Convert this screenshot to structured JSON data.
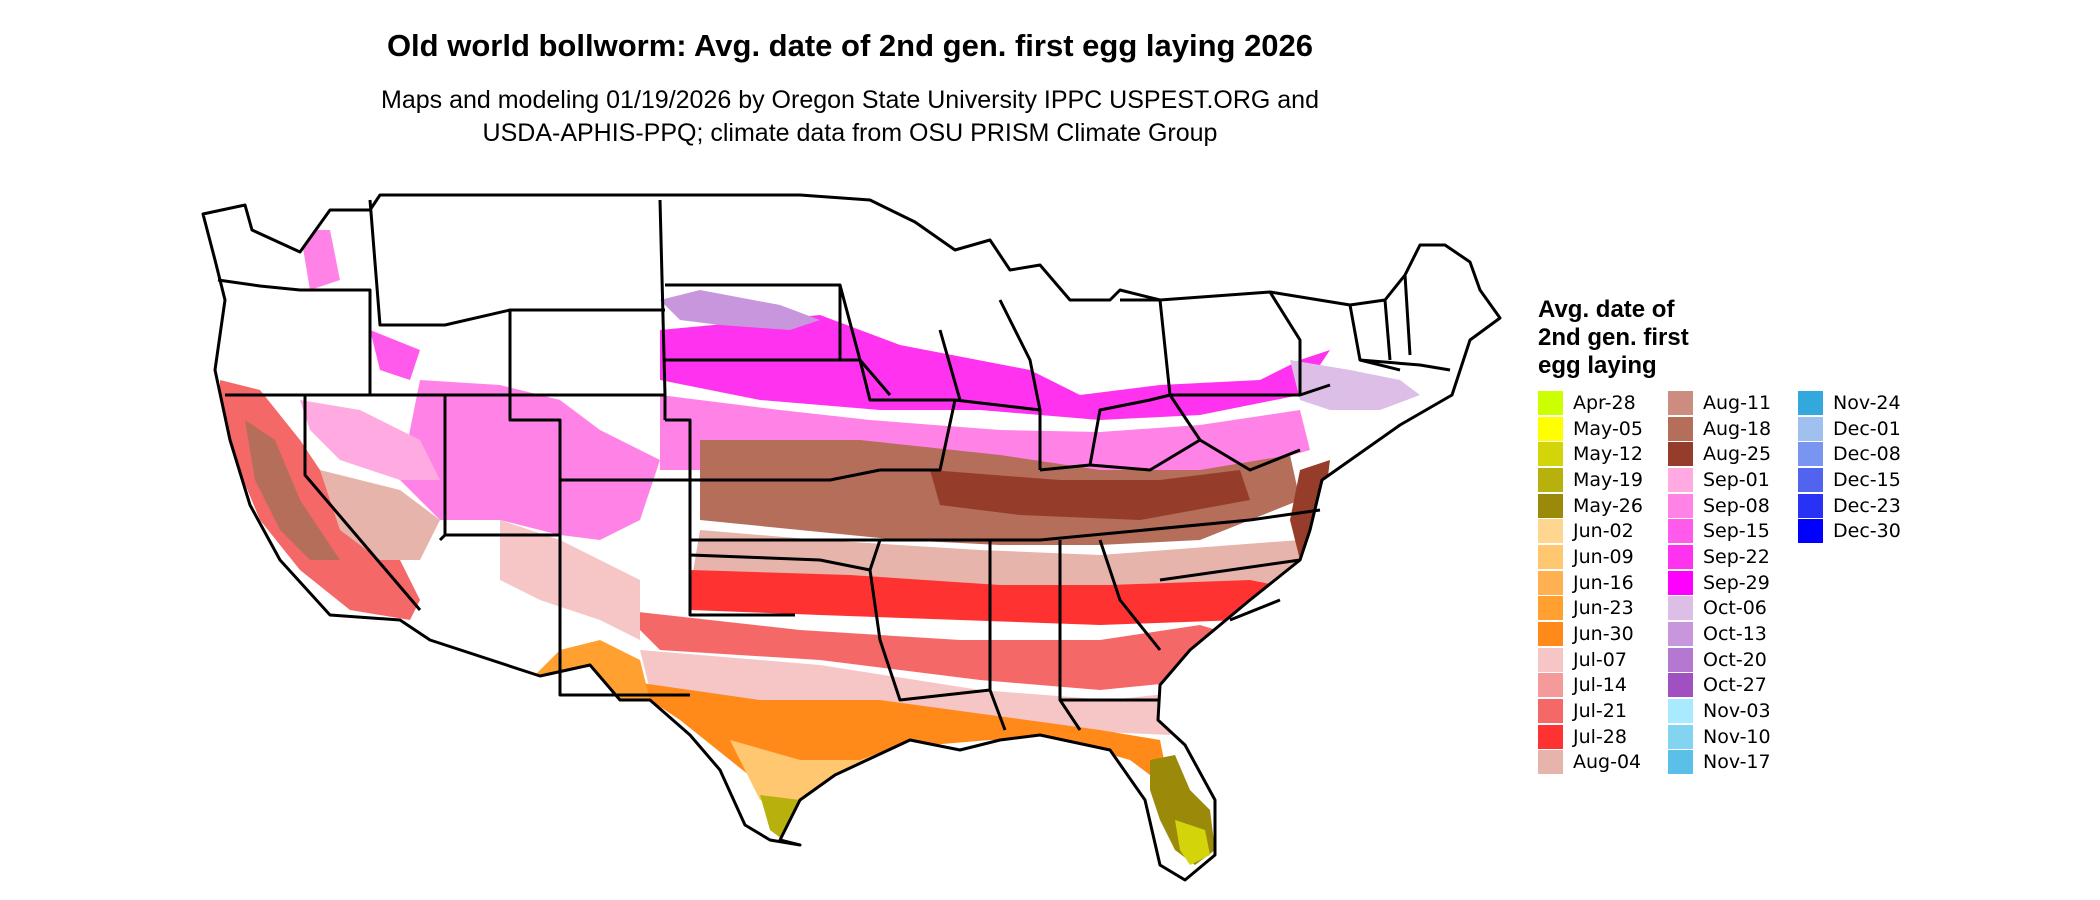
{
  "title": "Old world bollworm: Avg. date of 2nd gen. first egg laying 2026",
  "subtitle": {
    "line1": "Maps and modeling 01/19/2026 by Oregon State University IPPC USPEST.ORG and",
    "line2": "USDA-APHIS-PPQ; climate data from OSU PRISM Climate Group"
  },
  "legend": {
    "title_lines": [
      "Avg. date of",
      "2nd gen. first",
      "egg laying"
    ],
    "columns": [
      [
        {
          "label": "Apr-28",
          "color": "#ccff00"
        },
        {
          "label": "May-05",
          "color": "#ffff00"
        },
        {
          "label": "May-12",
          "color": "#d4d40a"
        },
        {
          "label": "May-19",
          "color": "#b8b00c"
        },
        {
          "label": "May-26",
          "color": "#9b8a0a"
        },
        {
          "label": "Jun-02",
          "color": "#fed690"
        },
        {
          "label": "Jun-09",
          "color": "#ffc870"
        },
        {
          "label": "Jun-16",
          "color": "#ffb050"
        },
        {
          "label": "Jun-23",
          "color": "#ffa030"
        },
        {
          "label": "Jun-30",
          "color": "#ff8a1a"
        },
        {
          "label": "Jul-07",
          "color": "#f6c6c6"
        },
        {
          "label": "Jul-14",
          "color": "#f59a9a"
        },
        {
          "label": "Jul-21",
          "color": "#f56868"
        },
        {
          "label": "Jul-28",
          "color": "#ff3232"
        },
        {
          "label": "Aug-04",
          "color": "#e6b4aa"
        }
      ],
      [
        {
          "label": "Aug-11",
          "color": "#cc8c80"
        },
        {
          "label": "Aug-18",
          "color": "#b46e5a"
        },
        {
          "label": "Aug-25",
          "color": "#963c2a"
        },
        {
          "label": "Sep-01",
          "color": "#ffaae0"
        },
        {
          "label": "Sep-08",
          "color": "#ff82e6"
        },
        {
          "label": "Sep-15",
          "color": "#ff5aeb"
        },
        {
          "label": "Sep-22",
          "color": "#ff32f0"
        },
        {
          "label": "Sep-29",
          "color": "#ff00ff"
        },
        {
          "label": "Oct-06",
          "color": "#dcbee6"
        },
        {
          "label": "Oct-13",
          "color": "#c896dc"
        },
        {
          "label": "Oct-20",
          "color": "#b478d0"
        },
        {
          "label": "Oct-27",
          "color": "#a050c0"
        },
        {
          "label": "Nov-03",
          "color": "#aaeaff"
        },
        {
          "label": "Nov-10",
          "color": "#82d4f0"
        },
        {
          "label": "Nov-17",
          "color": "#5ac0ea"
        }
      ],
      [
        {
          "label": "Nov-24",
          "color": "#32a8dc"
        },
        {
          "label": "Dec-01",
          "color": "#a0c0f0"
        },
        {
          "label": "Dec-08",
          "color": "#7896f0"
        },
        {
          "label": "Dec-15",
          "color": "#5064f0"
        },
        {
          "label": "Dec-23",
          "color": "#2832f5"
        },
        {
          "label": "Dec-30",
          "color": "#0000ff"
        }
      ]
    ]
  }
}
